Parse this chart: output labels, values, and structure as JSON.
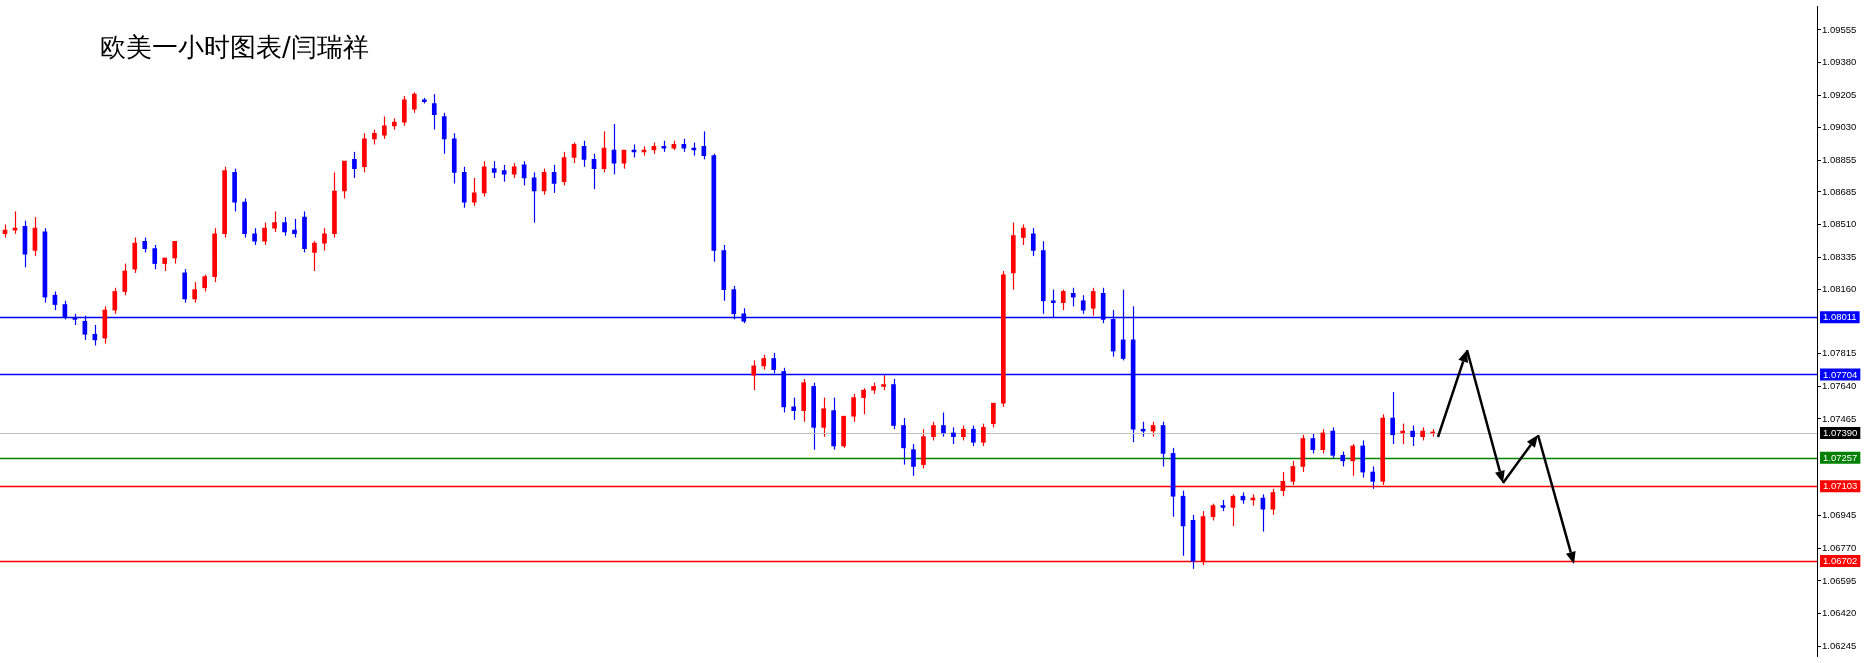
{
  "chart_data": {
    "type": "candlestick",
    "title": "欧美一小时图表/闫瑞祥",
    "categories": [
      null,
      null,
      null,
      null,
      null,
      null,
      null,
      null,
      null,
      null,
      null,
      null,
      null,
      null,
      null,
      null,
      null,
      null,
      null,
      null,
      null,
      null,
      null,
      null,
      null,
      null,
      null,
      null,
      null,
      null,
      null,
      null,
      null,
      null,
      null,
      null,
      null,
      null,
      null,
      null,
      null,
      null,
      null,
      null,
      null,
      null,
      null,
      null,
      null,
      null,
      null,
      null,
      null,
      null,
      null,
      null,
      null,
      null,
      null,
      null,
      null,
      null,
      null,
      null,
      null,
      null,
      null,
      null,
      null,
      null,
      null,
      null,
      null,
      null,
      null,
      null,
      null,
      null,
      null,
      null,
      null,
      null,
      null,
      null,
      null,
      null,
      null,
      null,
      null,
      null,
      null,
      null,
      null,
      null,
      null,
      null,
      null,
      null,
      null,
      null,
      null,
      null,
      null,
      null,
      null,
      null,
      null,
      null,
      null,
      null,
      null,
      null,
      null,
      null,
      null,
      null,
      null,
      null,
      null,
      null,
      null,
      null,
      null,
      null,
      null,
      null,
      null,
      null,
      null,
      null,
      null,
      null,
      null,
      null,
      null,
      null,
      null,
      null,
      null,
      null,
      null,
      null,
      null,
      null,
      null,
      null,
      null,
      null,
      null,
      null,
      null,
      null,
      null,
      null,
      null,
      null,
      null,
      null,
      null,
      null,
      null,
      null,
      null,
      null,
      null,
      null,
      null,
      null,
      null,
      null,
      null,
      null,
      null,
      null,
      null,
      null,
      null,
      null,
      null,
      null,
      null,
      null
    ],
    "colors": [
      "#ff0000",
      "#ff0000",
      "#0000ff",
      "#ff0000",
      "#0000ff",
      "#0000ff",
      "#0000ff",
      "#0000ff",
      "#0000ff",
      "#0000ff",
      "#ff0000",
      "#ff0000",
      "#ff0000",
      "#ff0000",
      "#0000ff",
      "#0000ff",
      "#ff0000",
      "#ff0000",
      "#0000ff",
      "#ff0000",
      "#ff0000",
      "#ff0000",
      "#ff0000",
      "#0000ff",
      "#0000ff",
      "#0000ff",
      "#ff0000",
      "#ff0000",
      "#0000ff",
      "#0000ff",
      "#0000ff",
      "#ff0000",
      "#ff0000",
      "#ff0000",
      "#ff0000",
      "#0000ff",
      "#ff0000",
      "#ff0000",
      "#ff0000",
      "#ff0000",
      "#ff0000",
      "#ff0000",
      "#0000ff",
      "#0000ff",
      "#0000ff",
      "#0000ff",
      "#0000ff",
      "#ff0000",
      "#ff0000",
      "#0000ff",
      "#0000ff",
      "#ff0000",
      "#0000ff",
      "#0000ff",
      "#ff0000",
      "#0000ff",
      "#ff0000",
      "#ff0000",
      "#0000ff",
      "#0000ff",
      "#ff0000",
      "#0000ff",
      "#ff0000",
      "#0000ff",
      "#ff0000",
      "#ff0000",
      "#0000ff",
      "#ff0000",
      "#0000ff",
      "#0000ff",
      "#0000ff",
      "#0000ff",
      "#0000ff",
      "#0000ff",
      "#0000ff",
      "#ff0000",
      "#ff0000",
      "#0000ff",
      "#0000ff",
      "#0000ff",
      "#ff0000",
      "#0000ff",
      "#ff0000",
      "#0000ff",
      "#ff0000",
      "#ff0000",
      "#ff0000",
      "#ff0000",
      "#ff0000",
      "#0000ff",
      "#0000ff",
      "#0000ff",
      "#ff0000",
      "#ff0000",
      "#0000ff",
      "#0000ff",
      "#ff0000",
      "#0000ff",
      "#ff0000",
      "#ff0000",
      "#ff0000",
      "#ff0000",
      "#ff0000",
      "#0000ff",
      "#0000ff",
      "#0000ff",
      "#ff0000",
      "#0000ff",
      "#0000ff",
      "#ff0000",
      "#0000ff",
      "#0000ff",
      "#0000ff",
      "#0000ff",
      "#0000ff",
      "#ff0000",
      "#0000ff",
      "#0000ff",
      "#0000ff",
      "#0000ff",
      "#ff0000",
      "#ff0000",
      "#0000ff",
      "#ff0000",
      "#0000ff",
      "#ff0000",
      "#0000ff",
      "#ff0000",
      "#ff0000",
      "#ff0000",
      "#ff0000",
      "#0000ff",
      "#ff0000",
      "#0000ff",
      "#0000ff",
      "#ff0000",
      "#0000ff",
      "#0000ff",
      "#ff0000",
      "#0000ff",
      "#ff0000",
      "#0000ff",
      "#ff0000",
      "#ff0000",
      null,
      null,
      null,
      null,
      null,
      null,
      null,
      null,
      null,
      null,
      null,
      null,
      null,
      null,
      null,
      null,
      null,
      null,
      null,
      null,
      null,
      null,
      null,
      null,
      null,
      null,
      null,
      null,
      null,
      null,
      null,
      null,
      null,
      null,
      null,
      null,
      null,
      null
    ],
    "ohlc": [
      [
        1.0846,
        1.0851,
        1.0844,
        1.0848
      ],
      [
        1.0848,
        1.0858,
        1.0846,
        1.0849
      ],
      [
        1.085,
        1.0853,
        1.0828,
        1.0835
      ],
      [
        1.0837,
        1.0855,
        1.0834,
        1.0849
      ],
      [
        1.0847,
        1.0849,
        1.0809,
        1.0812
      ],
      [
        1.0813,
        1.0815,
        1.0805,
        1.0808
      ],
      [
        1.0808,
        1.081,
        1.08,
        1.0801
      ],
      [
        1.0801,
        1.0803,
        1.0797,
        1.08
      ],
      [
        1.0799,
        1.0802,
        1.0789,
        1.0792
      ],
      [
        1.0792,
        1.0797,
        1.0786,
        1.0789
      ],
      [
        1.079,
        1.0807,
        1.0787,
        1.0805
      ],
      [
        1.0805,
        1.0817,
        1.0803,
        1.0815
      ],
      [
        1.0815,
        1.083,
        1.0813,
        1.0826
      ],
      [
        1.0827,
        1.0844,
        1.0825,
        1.0841
      ],
      [
        1.0842,
        1.0844,
        1.0836,
        1.0838
      ],
      [
        1.0838,
        1.084,
        1.0827,
        1.083
      ],
      [
        1.083,
        1.0833,
        1.0826,
        1.0833
      ],
      [
        1.0833,
        1.0842,
        1.083,
        1.0842
      ],
      [
        1.0825,
        1.0827,
        1.0809,
        1.0811
      ],
      [
        1.0811,
        1.082,
        1.0809,
        1.0816
      ],
      [
        1.0817,
        1.0824,
        1.0815,
        1.0823
      ],
      [
        1.0823,
        1.0849,
        1.082,
        1.0846
      ],
      [
        1.0846,
        1.0882,
        1.0844,
        1.088
      ],
      [
        1.0879,
        1.0881,
        1.0858,
        1.0863
      ],
      [
        1.0863,
        1.0865,
        1.0844,
        1.0846
      ],
      [
        1.0846,
        1.0849,
        1.084,
        1.0842
      ],
      [
        1.0842,
        1.0852,
        1.084,
        1.0849
      ],
      [
        1.0849,
        1.0858,
        1.0847,
        1.0852
      ],
      [
        1.0852,
        1.0855,
        1.0845,
        1.0847
      ],
      [
        1.0848,
        1.0854,
        1.0844,
        1.0846
      ],
      [
        1.0855,
        1.0858,
        1.0836,
        1.0838
      ],
      [
        1.0836,
        1.0842,
        1.0826,
        1.0841
      ],
      [
        1.0841,
        1.0849,
        1.0837,
        1.0846
      ],
      [
        1.0846,
        1.0879,
        1.0844,
        1.0869
      ],
      [
        1.0869,
        1.0885,
        1.0865,
        1.0885
      ],
      [
        1.0886,
        1.089,
        1.0876,
        1.0881
      ],
      [
        1.0882,
        1.09,
        1.0879,
        1.0897
      ],
      [
        1.0897,
        1.0902,
        1.0894,
        1.09
      ],
      [
        1.0899,
        1.0909,
        1.0897,
        1.0904
      ],
      [
        1.0904,
        1.0908,
        1.0902,
        1.0906
      ],
      [
        1.0906,
        1.092,
        1.0904,
        1.0918
      ],
      [
        1.0913,
        1.0922,
        1.0911,
        1.0921
      ],
      [
        1.0918,
        1.0919,
        1.0916,
        1.0917
      ],
      [
        1.0916,
        1.0921,
        1.0902,
        1.091
      ],
      [
        1.0909,
        1.0911,
        1.0889,
        1.0897
      ],
      [
        1.0897,
        1.09,
        1.0873,
        1.0879
      ],
      [
        1.0879,
        1.0882,
        1.086,
        1.0863
      ],
      [
        1.0863,
        1.0876,
        1.0861,
        1.0868
      ],
      [
        1.0868,
        1.0885,
        1.0866,
        1.0882
      ],
      [
        1.0881,
        1.0885,
        1.0876,
        1.0879
      ],
      [
        1.088,
        1.0883,
        1.0874,
        1.0878
      ],
      [
        1.0878,
        1.0884,
        1.0876,
        1.0882
      ],
      [
        1.0883,
        1.0885,
        1.0872,
        1.0876
      ],
      [
        1.0876,
        1.0879,
        1.0852,
        1.0869
      ],
      [
        1.0869,
        1.0881,
        1.0867,
        1.0879
      ],
      [
        1.0879,
        1.0883,
        1.0868,
        1.0873
      ],
      [
        1.0874,
        1.089,
        1.0872,
        1.0887
      ],
      [
        1.0887,
        1.0895,
        1.0884,
        1.0894
      ],
      [
        1.0893,
        1.0896,
        1.0882,
        1.0886
      ],
      [
        1.0886,
        1.0889,
        1.087,
        1.0881
      ],
      [
        1.0881,
        1.0901,
        1.0879,
        1.0892
      ],
      [
        1.0891,
        1.0905,
        1.0878,
        1.0884
      ],
      [
        1.0884,
        1.0891,
        1.0881,
        1.0891
      ],
      [
        1.0891,
        1.0894,
        1.0887,
        1.089
      ],
      [
        1.089,
        1.0893,
        1.0888,
        1.0891
      ],
      [
        1.0891,
        1.0895,
        1.0889,
        1.0893
      ],
      [
        1.0893,
        1.0896,
        1.089,
        1.0892
      ],
      [
        1.0892,
        1.0896,
        1.0891,
        1.0894
      ],
      [
        1.0894,
        1.0897,
        1.089,
        1.0892
      ],
      [
        1.0892,
        1.0895,
        1.0888,
        1.0891
      ],
      [
        1.0893,
        1.0901,
        1.0886,
        1.0888
      ],
      [
        1.0888,
        1.0889,
        1.0831,
        1.0837
      ],
      [
        1.0837,
        1.084,
        1.081,
        1.0816
      ],
      [
        1.0816,
        1.0818,
        1.08,
        1.0803
      ],
      [
        1.0803,
        1.0806,
        1.0798,
        1.0799
      ],
      [
        1.077,
        1.0778,
        1.0762,
        1.0775
      ],
      [
        1.0775,
        1.0781,
        1.0773,
        1.0779
      ],
      [
        1.0779,
        1.0782,
        1.0771,
        1.0773
      ],
      [
        1.0772,
        1.0774,
        1.075,
        1.0753
      ],
      [
        1.0753,
        1.0758,
        1.0746,
        1.0751
      ],
      [
        1.0751,
        1.0768,
        1.0745,
        1.0766
      ],
      [
        1.0764,
        1.0766,
        1.073,
        1.0742
      ],
      [
        1.0742,
        1.0758,
        1.0737,
        1.0752
      ],
      [
        1.0751,
        1.0758,
        1.073,
        1.0732
      ],
      [
        1.0732,
        1.0748,
        1.0731,
        1.0748
      ],
      [
        1.0748,
        1.076,
        1.0745,
        1.0758
      ],
      [
        1.0758,
        1.0763,
        1.0749,
        1.0762
      ],
      [
        1.0762,
        1.0766,
        1.076,
        1.0764
      ],
      [
        1.0764,
        1.077,
        1.0762,
        1.0765
      ],
      [
        1.0765,
        1.0768,
        1.0741,
        1.0743
      ],
      [
        1.0743,
        1.0747,
        1.0722,
        1.0731
      ],
      [
        1.073,
        1.0733,
        1.0716,
        1.0721
      ],
      [
        1.0722,
        1.0741,
        1.072,
        1.0737
      ],
      [
        1.0737,
        1.0745,
        1.0735,
        1.0743
      ],
      [
        1.0743,
        1.075,
        1.0737,
        1.0739
      ],
      [
        1.0739,
        1.0742,
        1.0733,
        1.0737
      ],
      [
        1.0737,
        1.0743,
        1.0735,
        1.0741
      ],
      [
        1.0741,
        1.0743,
        1.0732,
        1.0734
      ],
      [
        1.0734,
        1.0744,
        1.0732,
        1.0742
      ],
      [
        1.0744,
        1.0755,
        1.0742,
        1.0755
      ],
      [
        1.0755,
        1.0826,
        1.0753,
        1.0824
      ],
      [
        1.0825,
        1.0852,
        1.0816,
        1.0845
      ],
      [
        1.0844,
        1.0851,
        1.084,
        1.0849
      ],
      [
        1.0846,
        1.0849,
        1.0834,
        1.0837
      ],
      [
        1.0837,
        1.0842,
        1.0803,
        1.081
      ],
      [
        1.081,
        1.0816,
        1.0801,
        1.0809
      ],
      [
        1.0809,
        1.0816,
        1.0805,
        1.0815
      ],
      [
        1.0814,
        1.0817,
        1.0807,
        1.0812
      ],
      [
        1.081,
        1.0813,
        1.0803,
        1.0805
      ],
      [
        1.0806,
        1.0817,
        1.0802,
        1.0815
      ],
      [
        1.0814,
        1.0817,
        1.0798,
        1.08
      ],
      [
        1.08,
        1.0805,
        1.078,
        1.0783
      ],
      [
        1.0789,
        1.0816,
        1.0778,
        1.0779
      ],
      [
        1.0789,
        1.0807,
        1.0734,
        1.0741
      ],
      [
        1.0741,
        1.0745,
        1.0737,
        1.074
      ],
      [
        1.074,
        1.0745,
        1.0737,
        1.0743
      ],
      [
        1.0743,
        1.0745,
        1.0721,
        1.0728
      ],
      [
        1.0728,
        1.0731,
        1.0694,
        1.0705
      ],
      [
        1.0705,
        1.0708,
        1.0673,
        1.0689
      ],
      [
        1.0692,
        1.0695,
        1.0666,
        1.067
      ],
      [
        1.067,
        1.0697,
        1.0668,
        1.0694
      ],
      [
        1.0694,
        1.0701,
        1.0692,
        1.07
      ],
      [
        1.07,
        1.0703,
        1.0697,
        1.0699
      ],
      [
        1.0699,
        1.0706,
        1.0689,
        1.0705
      ],
      [
        1.0705,
        1.0707,
        1.0701,
        1.0703
      ],
      [
        1.0703,
        1.0706,
        1.07,
        1.0704
      ],
      [
        1.0704,
        1.0706,
        1.0686,
        1.0698
      ],
      [
        1.0698,
        1.0709,
        1.0695,
        1.0707
      ],
      [
        1.0708,
        1.0718,
        1.0705,
        1.0713
      ],
      [
        1.0713,
        1.0724,
        1.0711,
        1.0721
      ],
      [
        1.0721,
        1.0738,
        1.0718,
        1.0736
      ],
      [
        1.0736,
        1.0739,
        1.0728,
        1.073
      ],
      [
        1.073,
        1.0741,
        1.0728,
        1.0739
      ],
      [
        1.074,
        1.0742,
        1.0725,
        1.0727
      ],
      [
        1.0727,
        1.0729,
        1.0721,
        1.0724
      ],
      [
        1.0724,
        1.0733,
        1.0716,
        1.0732
      ],
      [
        1.0732,
        1.0735,
        1.0715,
        1.0718
      ],
      [
        1.0718,
        1.0721,
        1.0709,
        1.0713
      ],
      [
        1.0713,
        1.0749,
        1.0711,
        1.0747
      ],
      [
        1.0747,
        1.0761,
        1.0733,
        1.0738
      ],
      [
        1.0739,
        1.0744,
        1.0733,
        1.074
      ],
      [
        1.074,
        1.0743,
        1.0732,
        1.0737
      ],
      [
        1.0737,
        1.0742,
        1.0735,
        1.074
      ],
      [
        1.0739,
        1.0741,
        1.0737,
        1.0739
      ],
      null,
      null,
      null,
      null,
      null,
      null,
      null,
      null,
      null,
      null,
      null,
      null,
      null,
      null,
      null,
      null,
      null,
      null,
      null,
      null,
      null,
      null,
      null,
      null,
      null,
      null,
      null,
      null,
      null,
      null,
      null,
      null,
      null,
      null,
      null,
      null,
      null,
      null
    ],
    "ylim": [
      1.0619,
      1.0968
    ],
    "yticks": [
      1.09555,
      {
        "value": 1.0938,
        "label": "1.09380"
      },
      1.09205,
      {
        "value": 1.0903,
        "label": "1.09030"
      },
      1.08855,
      1.08685,
      {
        "value": 1.0851,
        "label": "1.08510"
      },
      1.08335,
      {
        "value": 1.0816,
        "label": "1.08160"
      },
      1.07815,
      {
        "value": 1.0764,
        "label": "1.07640"
      },
      1.07465,
      1.06945,
      {
        "value": 1.0677,
        "label": "1.06770"
      },
      1.06595,
      {
        "value": 1.0642,
        "label": "1.06420"
      },
      1.06245
    ],
    "ref_lines": [
      {
        "axis": "y",
        "value": 1.08011,
        "label": "1.08011",
        "color": "#0000ff"
      },
      {
        "axis": "y",
        "value": 1.07704,
        "label": "1.07704",
        "color": "#0000ff"
      },
      {
        "axis": "y",
        "value": 1.0739,
        "label": "1.07390",
        "color": "#c0c0c0"
      },
      {
        "axis": "y",
        "value": 1.07257,
        "label": "1.07257",
        "color": "#008000"
      },
      {
        "axis": "y",
        "value": 1.07103,
        "label": "1.07103",
        "color": "#ff0000"
      },
      {
        "axis": "y",
        "value": 1.06702,
        "label": "1.06702",
        "color": "#ff0000"
      }
    ],
    "tick_labels": "y",
    "grid": false,
    "legend": false
  }
}
